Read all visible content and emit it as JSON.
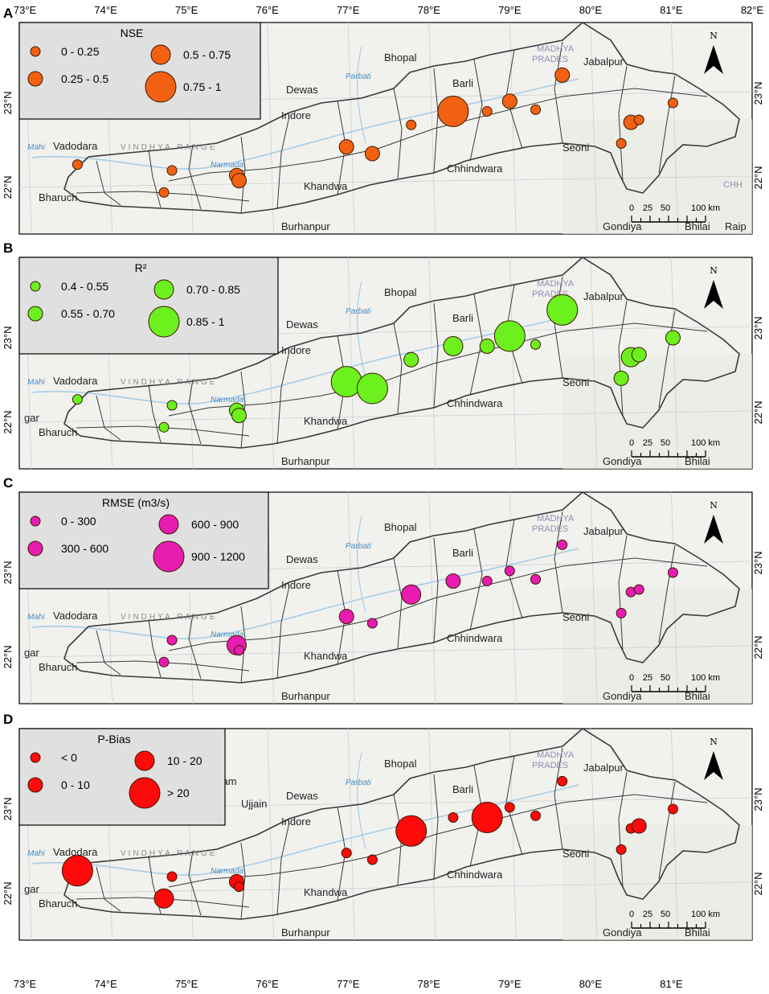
{
  "axes": {
    "lon_labels": [
      "73°E",
      "74°E",
      "75°E",
      "76°E",
      "77°E",
      "78°E",
      "79°E",
      "80°E",
      "81°E",
      "82°E"
    ],
    "lon_labels_bottom": [
      "73°E",
      "74°E",
      "75°E",
      "76°E",
      "77°E",
      "78°E",
      "79°E",
      "80°E",
      "81°E"
    ],
    "lat_labels": [
      "23°N",
      "22°N"
    ]
  },
  "scale_bar": {
    "labels": [
      "0",
      "25",
      "50",
      "100 km"
    ]
  },
  "north_arrow": {
    "label": "N"
  },
  "places": {
    "bhopal": "Bhopal",
    "jabalpur": "Jabalpur",
    "madhya": "MADHYA",
    "prades": "PRADES",
    "dewas": "Dewas",
    "indore": "Indore",
    "vadodara": "Vadodara",
    "bharuch": "Bharuch",
    "khandwa": "Khandwa",
    "burhanpur": "Burhanpur",
    "seoni": "Seoni",
    "chhindwara": "Chhindwara",
    "gondiya": "Gondiya",
    "bhilai": "Bhilai",
    "barli": "Barli",
    "mahi": "Mahi",
    "narmada": "Narmada",
    "parbati": "Parbati",
    "vindhya": "VINDHYA RANGE",
    "ujjain": "Ujjain",
    "ratlam": "tlam",
    "chh": "CHH",
    "raip": "Raip",
    "gar": "gar"
  },
  "colors": {
    "map_bg": "#f1f1ee",
    "river": "#a9cde4",
    "border": "#3a3a3a",
    "legend_bg": "#e0e0e0"
  },
  "panels": [
    {
      "letter": "A",
      "legend_title": "NSE",
      "color": "#f26012",
      "classes": [
        "0 - 0.25",
        "0.25 - 0.5",
        "0.5 - 0.75",
        "0.75 - 1"
      ],
      "sites": [
        {
          "lon": 73.65,
          "lat": 22.27,
          "cls": 0
        },
        {
          "lon": 74.82,
          "lat": 22.2,
          "cls": 0
        },
        {
          "lon": 74.72,
          "lat": 21.94,
          "cls": 0
        },
        {
          "lon": 75.62,
          "lat": 22.14,
          "cls": 1
        },
        {
          "lon": 75.65,
          "lat": 22.08,
          "cls": 1
        },
        {
          "lon": 76.98,
          "lat": 22.48,
          "cls": 1
        },
        {
          "lon": 77.3,
          "lat": 22.4,
          "cls": 1
        },
        {
          "lon": 77.78,
          "lat": 22.74,
          "cls": 0
        },
        {
          "lon": 78.3,
          "lat": 22.9,
          "cls": 3
        },
        {
          "lon": 78.72,
          "lat": 22.9,
          "cls": 0
        },
        {
          "lon": 79.0,
          "lat": 23.02,
          "cls": 1
        },
        {
          "lon": 79.32,
          "lat": 22.92,
          "cls": 0
        },
        {
          "lon": 79.65,
          "lat": 23.33,
          "cls": 1
        },
        {
          "lon": 80.38,
          "lat": 22.52,
          "cls": 0
        },
        {
          "lon": 80.5,
          "lat": 22.77,
          "cls": 1
        },
        {
          "lon": 80.6,
          "lat": 22.8,
          "cls": 0
        },
        {
          "lon": 81.02,
          "lat": 23.0,
          "cls": 0
        }
      ]
    },
    {
      "letter": "B",
      "legend_title": "R²",
      "color": "#6cf01e",
      "classes": [
        "0.4 - 0.55",
        "0.55 - 0.70",
        "0.70 - 0.85",
        "0.85 - 1"
      ],
      "sites": [
        {
          "lon": 73.65,
          "lat": 22.27,
          "cls": 0
        },
        {
          "lon": 74.82,
          "lat": 22.2,
          "cls": 0
        },
        {
          "lon": 74.72,
          "lat": 21.94,
          "cls": 0
        },
        {
          "lon": 75.62,
          "lat": 22.14,
          "cls": 1
        },
        {
          "lon": 75.65,
          "lat": 22.08,
          "cls": 1
        },
        {
          "lon": 76.98,
          "lat": 22.48,
          "cls": 3
        },
        {
          "lon": 77.3,
          "lat": 22.4,
          "cls": 3
        },
        {
          "lon": 77.78,
          "lat": 22.74,
          "cls": 1
        },
        {
          "lon": 78.3,
          "lat": 22.9,
          "cls": 2
        },
        {
          "lon": 78.72,
          "lat": 22.9,
          "cls": 1
        },
        {
          "lon": 79.0,
          "lat": 23.02,
          "cls": 3
        },
        {
          "lon": 79.32,
          "lat": 22.92,
          "cls": 0
        },
        {
          "lon": 79.65,
          "lat": 23.33,
          "cls": 3
        },
        {
          "lon": 80.38,
          "lat": 22.52,
          "cls": 1
        },
        {
          "lon": 80.5,
          "lat": 22.77,
          "cls": 2
        },
        {
          "lon": 80.6,
          "lat": 22.8,
          "cls": 1
        },
        {
          "lon": 81.02,
          "lat": 23.0,
          "cls": 1
        }
      ]
    },
    {
      "letter": "C",
      "legend_title": "RMSE (m3/s)",
      "color": "#e81cb0",
      "classes": [
        "0 - 300",
        "300 - 600",
        "600 - 900",
        "900 - 1200"
      ],
      "sites": [
        {
          "lon": 74.82,
          "lat": 22.2,
          "cls": 0
        },
        {
          "lon": 74.72,
          "lat": 21.94,
          "cls": 0
        },
        {
          "lon": 75.62,
          "lat": 22.14,
          "cls": 2
        },
        {
          "lon": 75.65,
          "lat": 22.08,
          "cls": 0
        },
        {
          "lon": 76.98,
          "lat": 22.48,
          "cls": 1
        },
        {
          "lon": 77.3,
          "lat": 22.4,
          "cls": 0
        },
        {
          "lon": 77.78,
          "lat": 22.74,
          "cls": 2
        },
        {
          "lon": 78.3,
          "lat": 22.9,
          "cls": 1
        },
        {
          "lon": 78.72,
          "lat": 22.9,
          "cls": 0
        },
        {
          "lon": 79.0,
          "lat": 23.02,
          "cls": 0
        },
        {
          "lon": 79.32,
          "lat": 22.92,
          "cls": 0
        },
        {
          "lon": 79.65,
          "lat": 23.33,
          "cls": 0
        },
        {
          "lon": 80.38,
          "lat": 22.52,
          "cls": 0
        },
        {
          "lon": 80.5,
          "lat": 22.77,
          "cls": 0
        },
        {
          "lon": 80.6,
          "lat": 22.8,
          "cls": 0
        },
        {
          "lon": 81.02,
          "lat": 23.0,
          "cls": 0
        }
      ]
    },
    {
      "letter": "D",
      "legend_title": "P-Bias",
      "color": "#ff0a0a",
      "classes": [
        "< 0",
        "0 - 10",
        "10 - 20",
        "> 20"
      ],
      "sites": [
        {
          "lon": 73.65,
          "lat": 22.27,
          "cls": 3
        },
        {
          "lon": 74.82,
          "lat": 22.2,
          "cls": 0
        },
        {
          "lon": 74.72,
          "lat": 21.94,
          "cls": 2
        },
        {
          "lon": 75.62,
          "lat": 22.14,
          "cls": 1
        },
        {
          "lon": 75.65,
          "lat": 22.08,
          "cls": 0
        },
        {
          "lon": 76.98,
          "lat": 22.48,
          "cls": 0
        },
        {
          "lon": 77.3,
          "lat": 22.4,
          "cls": 0
        },
        {
          "lon": 77.78,
          "lat": 22.74,
          "cls": 3
        },
        {
          "lon": 78.3,
          "lat": 22.9,
          "cls": 0
        },
        {
          "lon": 78.72,
          "lat": 22.9,
          "cls": 3
        },
        {
          "lon": 79.0,
          "lat": 23.02,
          "cls": 0
        },
        {
          "lon": 79.32,
          "lat": 22.92,
          "cls": 0
        },
        {
          "lon": 79.65,
          "lat": 23.33,
          "cls": 0
        },
        {
          "lon": 80.38,
          "lat": 22.52,
          "cls": 0
        },
        {
          "lon": 80.5,
          "lat": 22.77,
          "cls": 0
        },
        {
          "lon": 80.6,
          "lat": 22.8,
          "cls": 1
        },
        {
          "lon": 81.02,
          "lat": 23.0,
          "cls": 0
        }
      ]
    }
  ]
}
